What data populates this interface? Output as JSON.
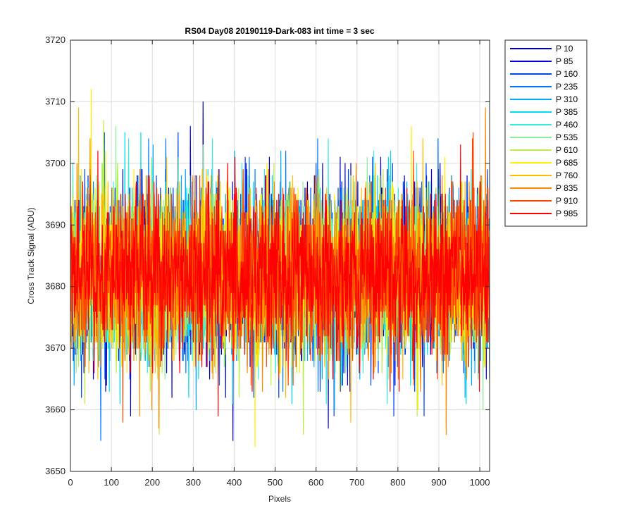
{
  "chart_data": {
    "type": "line",
    "title": "RS04 Day08 20190119-Dark-083 int time = 3 sec",
    "xlabel": "Pixels",
    "ylabel": "Cross Track Signal (ADU)",
    "xlim": [
      0,
      1024
    ],
    "ylim": [
      3650,
      3720
    ],
    "x_ticks": [
      0,
      100,
      200,
      300,
      400,
      500,
      600,
      700,
      800,
      900,
      1000
    ],
    "y_ticks": [
      3650,
      3660,
      3670,
      3680,
      3690,
      3700,
      3710,
      3720
    ],
    "grid": true,
    "legend_position": "outside-top-right",
    "x_range": [
      1,
      1024
    ],
    "mean": 3682,
    "noise_std": 6.5,
    "series": [
      {
        "name": "P 10",
        "color": "#0000AA",
        "mean": 3682,
        "std": 6.5,
        "max": 3710,
        "min": 3655
      },
      {
        "name": "P 85",
        "color": "#0000DD",
        "mean": 3682,
        "std": 6.5,
        "max": 3706,
        "min": 3657
      },
      {
        "name": "P 160",
        "color": "#0044EE",
        "mean": 3682,
        "std": 6.5,
        "max": 3705,
        "min": 3659
      },
      {
        "name": "P 235",
        "color": "#0077FF",
        "mean": 3682,
        "std": 6.5,
        "max": 3704,
        "min": 3655
      },
      {
        "name": "P 310",
        "color": "#00AAFF",
        "mean": 3682,
        "std": 6.5,
        "max": 3703,
        "min": 3660
      },
      {
        "name": "P 385",
        "color": "#00DDEE",
        "mean": 3682,
        "std": 6.5,
        "max": 3705,
        "min": 3661
      },
      {
        "name": "P 460",
        "color": "#33EEDD",
        "mean": 3682,
        "std": 6.5,
        "max": 3704,
        "min": 3661
      },
      {
        "name": "P 535",
        "color": "#88EE99",
        "mean": 3682,
        "std": 6.5,
        "max": 3706,
        "min": 3660
      },
      {
        "name": "P 610",
        "color": "#BBEE44",
        "mean": 3682,
        "std": 6.5,
        "max": 3707,
        "min": 3656
      },
      {
        "name": "P 685",
        "color": "#FFEE00",
        "mean": 3682,
        "std": 6.5,
        "max": 3712,
        "min": 3654
      },
      {
        "name": "P 760",
        "color": "#FFBB00",
        "mean": 3682,
        "std": 6.5,
        "max": 3709,
        "min": 3658
      },
      {
        "name": "P 835",
        "color": "#FF8800",
        "mean": 3682,
        "std": 6.5,
        "max": 3709,
        "min": 3656
      },
      {
        "name": "P 910",
        "color": "#FF4400",
        "mean": 3682,
        "std": 6.5,
        "max": 3705,
        "min": 3658
      },
      {
        "name": "P 985",
        "color": "#FF0000",
        "mean": 3682,
        "std": 6.5,
        "max": 3703,
        "min": 3659
      }
    ]
  }
}
